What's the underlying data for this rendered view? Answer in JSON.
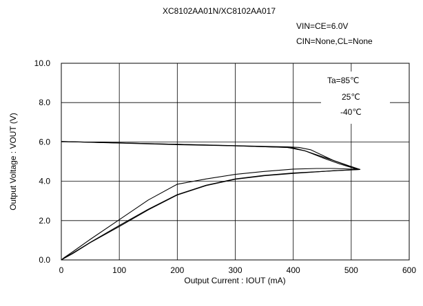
{
  "chart_data": {
    "type": "line",
    "title": "XC8102AA01N/XC8102AA017",
    "conditions": [
      "VIN=CE=6.0V",
      "CIN=None,CL=None"
    ],
    "xlabel": "Output Current : IOUT (mA)",
    "ylabel": "Output Voltage : VOUT (V)",
    "xlim": [
      0,
      600
    ],
    "ylim": [
      0,
      10
    ],
    "xticks": [
      0,
      100,
      200,
      300,
      400,
      500,
      600
    ],
    "yticks": [
      0,
      2,
      4,
      6,
      8,
      10
    ],
    "xtick_labels": [
      "0",
      "100",
      "200",
      "300",
      "400",
      "500",
      "600"
    ],
    "ytick_labels": [
      "0.0",
      "2.0",
      "4.0",
      "6.0",
      "8.0",
      "10.0"
    ],
    "grid": true,
    "legend": {
      "placement": "top-right",
      "header": "Ta=",
      "entries": [
        "85℃",
        "25℃",
        "-40℃"
      ]
    },
    "series": [
      {
        "x": [
          0,
          100,
          200,
          300,
          390,
          410,
          430,
          450,
          470,
          490,
          505,
          515,
          505,
          480,
          450,
          400,
          350,
          300,
          250,
          200,
          150,
          100,
          50,
          20,
          5,
          0
        ],
        "y": [
          6.02,
          5.95,
          5.88,
          5.81,
          5.75,
          5.72,
          5.6,
          5.32,
          5.05,
          4.83,
          4.65,
          4.6,
          4.58,
          4.55,
          4.5,
          4.42,
          4.3,
          4.12,
          3.8,
          3.32,
          2.58,
          1.75,
          0.9,
          0.35,
          0.1,
          0
        ]
      },
      {
        "x": [
          0,
          100,
          200,
          300,
          380,
          400,
          420,
          440,
          460,
          480,
          500,
          515,
          500,
          470,
          440,
          400,
          350,
          300,
          250,
          200,
          150,
          100,
          50,
          20,
          5,
          0
        ],
        "y": [
          6.02,
          5.95,
          5.88,
          5.8,
          5.73,
          5.7,
          5.55,
          5.35,
          5.15,
          4.95,
          4.75,
          4.6,
          4.58,
          4.54,
          4.48,
          4.4,
          4.28,
          4.1,
          3.78,
          3.3,
          2.55,
          1.7,
          0.88,
          0.33,
          0.08,
          0
        ]
      },
      {
        "x": [
          0,
          100,
          200,
          300,
          390,
          420,
          450,
          480,
          500,
          515,
          500,
          470,
          440,
          400,
          350,
          300,
          250,
          200,
          150,
          100,
          50,
          20,
          5,
          0
        ],
        "y": [
          6.02,
          5.94,
          5.86,
          5.8,
          5.72,
          5.55,
          5.2,
          4.88,
          4.7,
          4.6,
          4.62,
          4.65,
          4.65,
          4.62,
          4.5,
          4.35,
          4.12,
          3.85,
          3.05,
          2.05,
          1.05,
          0.42,
          0.12,
          0
        ]
      }
    ]
  }
}
